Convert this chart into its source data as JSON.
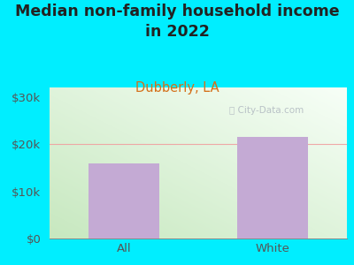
{
  "title": "Median non-family household income\nin 2022",
  "subtitle": "Dubberly, LA",
  "categories": [
    "All",
    "White"
  ],
  "values": [
    16000,
    21500
  ],
  "bar_color": "#c4aad4",
  "background_outer": "#00eeff",
  "title_color": "#222222",
  "subtitle_color": "#d4701a",
  "axis_label_color": "#555555",
  "yticks": [
    0,
    10000,
    20000,
    30000
  ],
  "ytick_labels": [
    "$0",
    "$10k",
    "$20k",
    "$30k"
  ],
  "ylim": [
    0,
    32000
  ],
  "watermark": "ⓘ City-Data.com",
  "grid_line_color": "#f0a0a0",
  "title_fontsize": 12.5,
  "subtitle_fontsize": 10.5,
  "tick_fontsize": 9.5
}
